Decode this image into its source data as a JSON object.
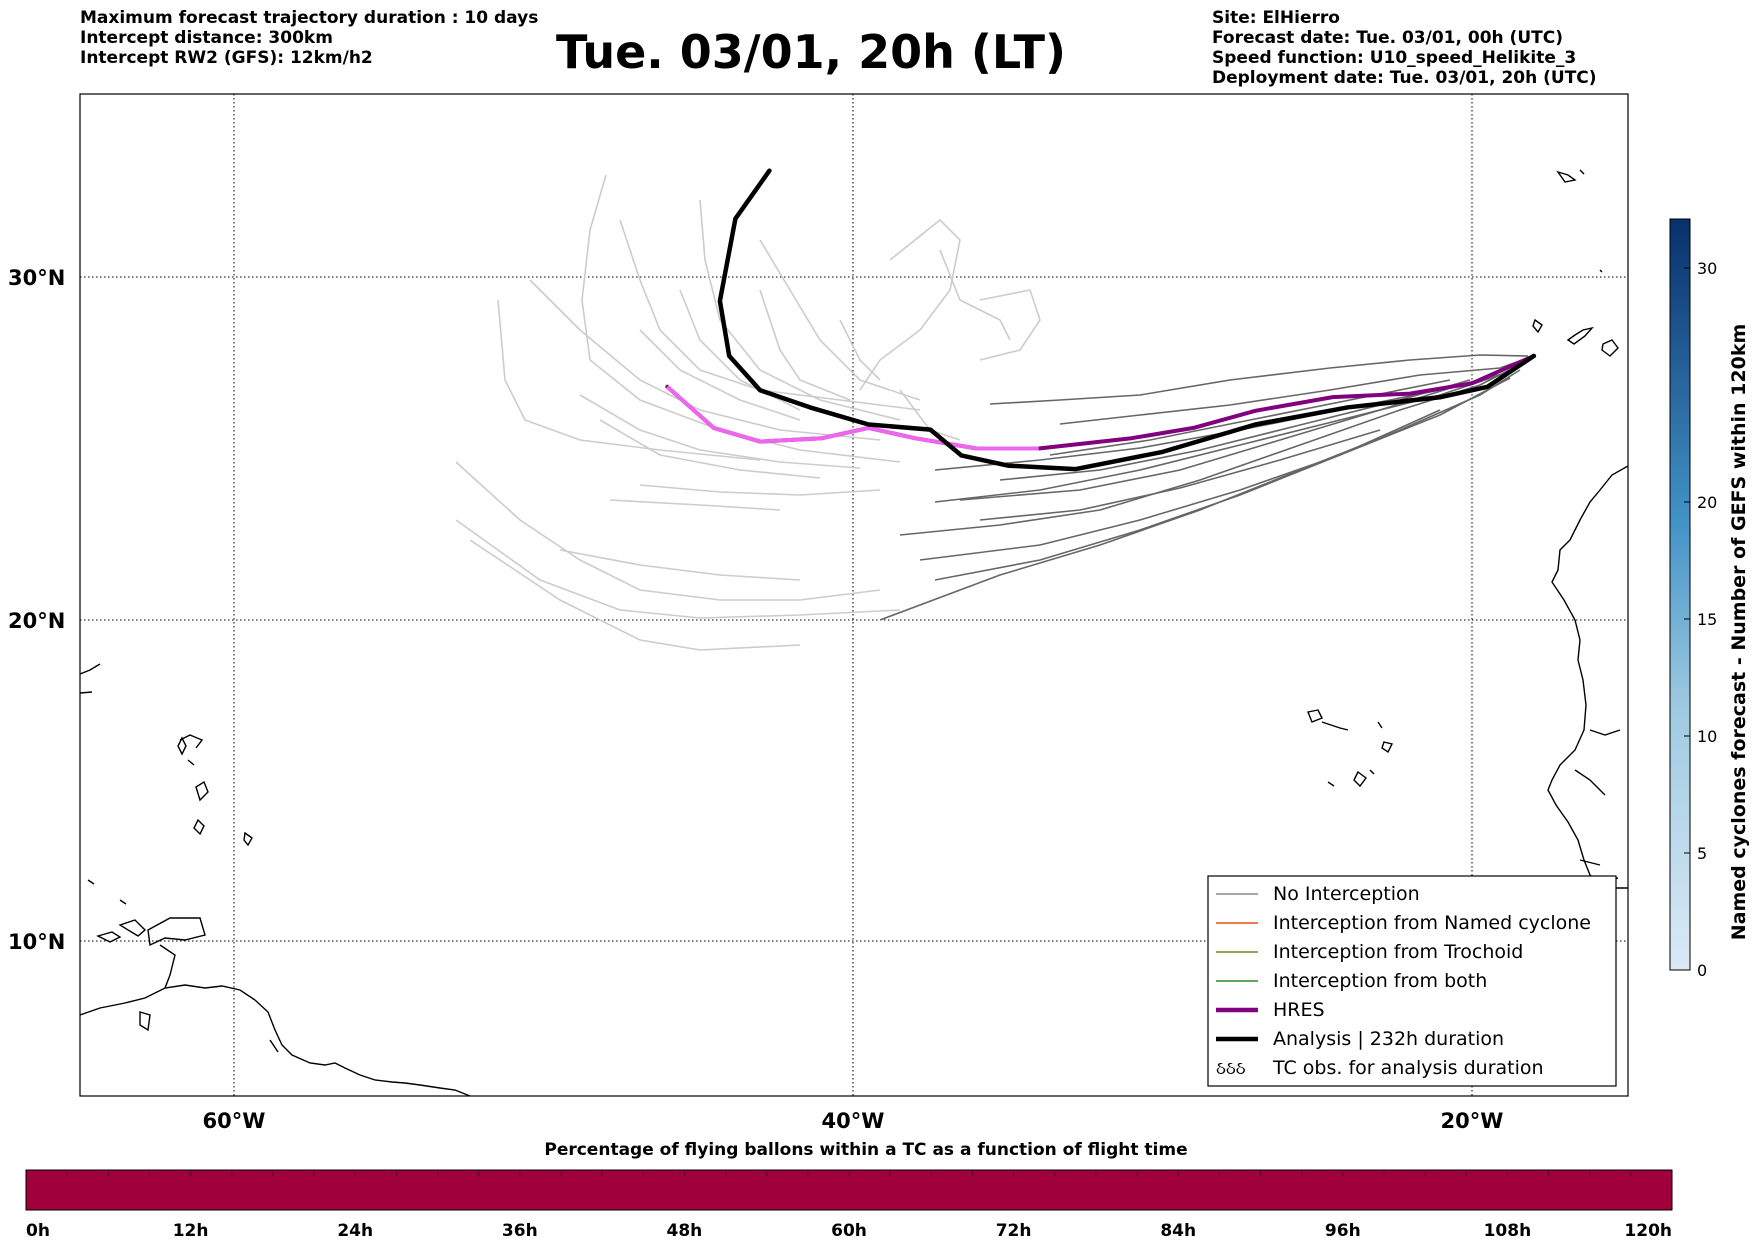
{
  "header": {
    "left_lines": [
      "Maximum forecast trajectory duration : 10 days",
      "Intercept distance: 300km",
      "Intercept RW2 (GFS):  12km/h2"
    ],
    "title": "Tue. 03/01, 20h (LT)",
    "right_lines": [
      "Site: ElHierro",
      "Forecast date: Tue. 03/01, 00h (UTC)",
      "Speed function: U10_speed_Helikite_3",
      "Deployment date: Tue. 03/01, 20h (UTC)"
    ]
  },
  "map": {
    "lon_range": [
      -65,
      15
    ],
    "lat_range": [
      5.4,
      34.6
    ],
    "lat_labels": [
      "30°N",
      "20°N",
      "10°N"
    ],
    "lon_labels": [
      "60°W",
      "40°W",
      "20°W"
    ],
    "grid": "dotted",
    "launch_site": {
      "lon": -18,
      "lat": 27.7
    }
  },
  "legend": {
    "position": "lower-right",
    "items": [
      {
        "label": "No Interception",
        "color": "#888888",
        "style": "thin"
      },
      {
        "label": "Interception from Named cyclone",
        "color": "#e8501a",
        "style": "thin"
      },
      {
        "label": "Interception from Trochoid",
        "color": "#808020",
        "style": "thin"
      },
      {
        "label": "Interception from both",
        "color": "#2a8a2a",
        "style": "thin"
      },
      {
        "label": "HRES",
        "color": "#800080",
        "style": "thick"
      },
      {
        "label": "Analysis | 232h duration",
        "color": "#000000",
        "style": "thick"
      },
      {
        "label": "TC obs. for analysis duration",
        "color": "#000000",
        "style": "symbol",
        "symbol": "ઠઠઠ"
      }
    ]
  },
  "colorbar_right": {
    "title": "Named cyclones forecast - Number of GEFS within 120km",
    "range": [
      0,
      32
    ],
    "ticks": [
      "0",
      "5",
      "10",
      "15",
      "20",
      "30"
    ],
    "color_low": "#dce9f6",
    "color_high": "#08306b"
  },
  "colorbar_bottom": {
    "title": "Percentage of flying ballons within a TC as a function of flight time",
    "ticks": [
      "0h",
      "12h",
      "24h",
      "36h",
      "48h",
      "60h",
      "72h",
      "84h",
      "96h",
      "108h",
      "120h"
    ],
    "color": "#a0003c",
    "segments": 40
  },
  "chart_data": {
    "type": "trajectory-map",
    "series": [
      {
        "name": "HRES",
        "color": "#800080",
        "points": [
          [
            -46,
            26.8
          ],
          [
            -44.5,
            25.6
          ],
          [
            -43,
            25.2
          ],
          [
            -41,
            25.3
          ],
          [
            -39.5,
            25.6
          ],
          [
            -38,
            25.3
          ],
          [
            -36,
            25.0
          ],
          [
            -34,
            25.0
          ],
          [
            -31,
            25.3
          ],
          [
            -29,
            25.6
          ],
          [
            -27,
            26.1
          ],
          [
            -24.5,
            26.5
          ],
          [
            -22,
            26.6
          ],
          [
            -20,
            26.9
          ],
          [
            -18,
            27.7
          ]
        ]
      },
      {
        "name": "Analysis | 232h duration",
        "color": "#000000",
        "points": [
          [
            -42.7,
            33.1
          ],
          [
            -43.8,
            31.7
          ],
          [
            -44.3,
            29.3
          ],
          [
            -44.0,
            27.7
          ],
          [
            -43,
            26.7
          ],
          [
            -41.4,
            26.2
          ],
          [
            -39.5,
            25.7
          ],
          [
            -37.5,
            25.55
          ],
          [
            -36.5,
            24.8
          ],
          [
            -35,
            24.5
          ],
          [
            -32.8,
            24.4
          ],
          [
            -30,
            24.9
          ],
          [
            -27,
            25.7
          ],
          [
            -24,
            26.2
          ],
          [
            -21,
            26.5
          ],
          [
            -19.5,
            26.8
          ],
          [
            -18,
            27.7
          ]
        ]
      }
    ]
  }
}
